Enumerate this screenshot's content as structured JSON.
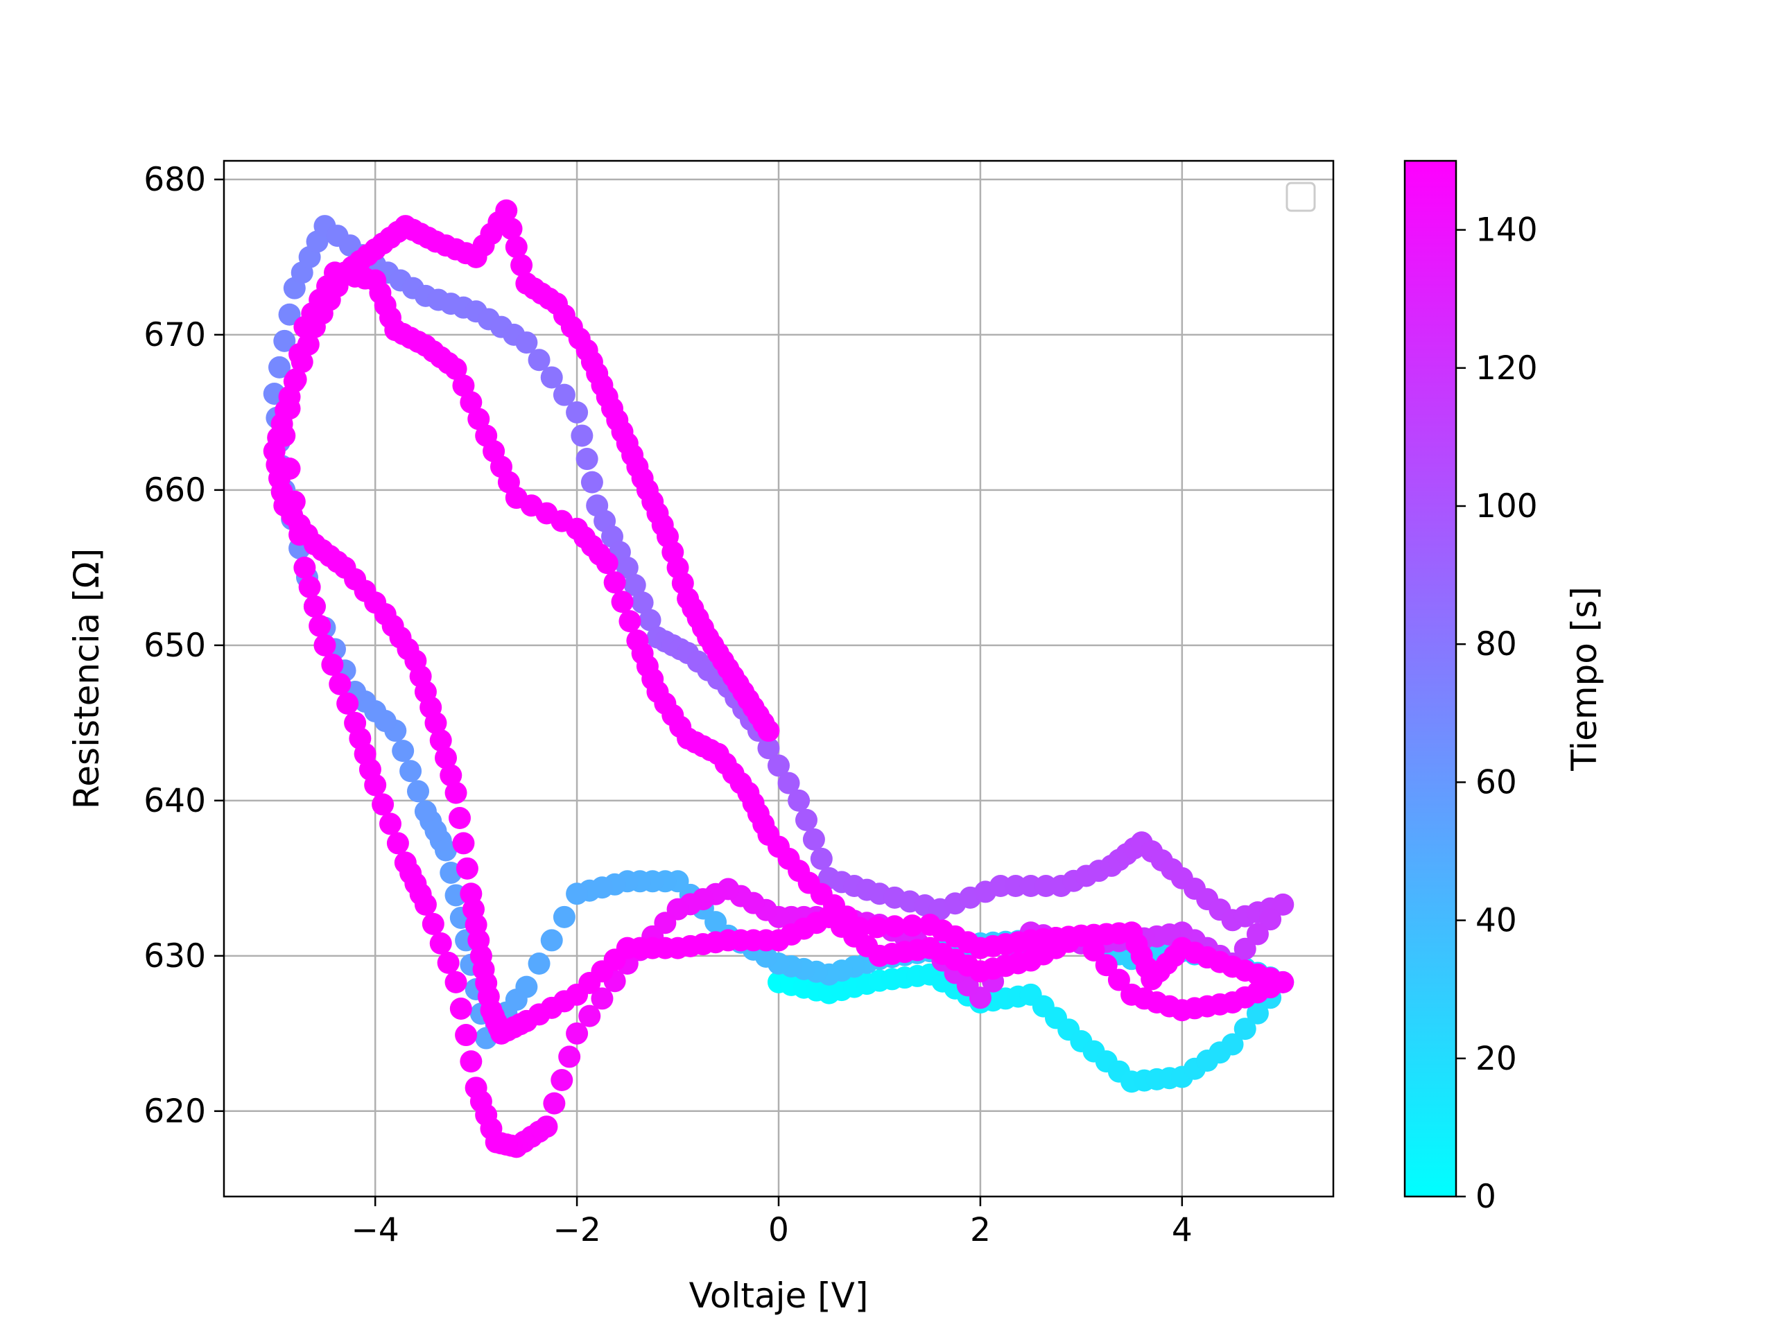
{
  "chart_data": {
    "type": "scatter",
    "xlabel": "Voltaje [V]",
    "ylabel": "Resistencia [Ω]",
    "xlim": [
      -5.5,
      5.5
    ],
    "ylim": [
      614.5,
      681.2
    ],
    "xticks": [
      -4,
      -2,
      0,
      2,
      4
    ],
    "yticks": [
      620,
      630,
      640,
      650,
      660,
      670,
      680
    ],
    "grid": true,
    "legend": "top-right, empty",
    "colormap": "cool",
    "colorbar": {
      "label": "Tiempo [s]",
      "range": [
        0,
        150
      ],
      "ticks": [
        0,
        20,
        40,
        60,
        80,
        100,
        120,
        140
      ]
    },
    "marker_color_low": "#00ffff",
    "marker_color_high": "#ff00ff",
    "path": [
      [
        0,
        0,
        628.3
      ],
      [
        3,
        0.5,
        627.6
      ],
      [
        5,
        1.0,
        628.4
      ],
      [
        7,
        1.5,
        628.8
      ],
      [
        9,
        2.0,
        627.0
      ],
      [
        11,
        2.5,
        627.5
      ],
      [
        13,
        3.0,
        624.5
      ],
      [
        15,
        3.5,
        621.9
      ],
      [
        17,
        4.0,
        622.2
      ],
      [
        19,
        4.5,
        624.3
      ],
      [
        21,
        5.0,
        628.3
      ],
      [
        23,
        4.5,
        629.5
      ],
      [
        25,
        4.0,
        630.3
      ],
      [
        27,
        3.5,
        629.8
      ],
      [
        29,
        3.0,
        631.0
      ],
      [
        31,
        2.5,
        631.0
      ],
      [
        33,
        2.0,
        630.8
      ],
      [
        35,
        1.5,
        630.3
      ],
      [
        37,
        1.0,
        629.8
      ],
      [
        39,
        0.5,
        628.8
      ],
      [
        41,
        0.0,
        629.5
      ],
      [
        43,
        -0.5,
        631.3
      ],
      [
        45,
        -1.0,
        634.8
      ],
      [
        47,
        -1.5,
        634.8
      ],
      [
        49,
        -2.0,
        634.0
      ],
      [
        51,
        -2.5,
        628.0
      ],
      [
        53,
        -2.9,
        624.7
      ],
      [
        55,
        -3.1,
        631.0
      ],
      [
        57,
        -3.3,
        636.8
      ],
      [
        59,
        -3.5,
        639.3
      ],
      [
        61,
        -3.8,
        644.5
      ],
      [
        63,
        -4.2,
        647.0
      ],
      [
        65,
        -4.6,
        652.5
      ],
      [
        67,
        -4.9,
        660.0
      ],
      [
        69,
        -5.0,
        666.2
      ],
      [
        71,
        -4.8,
        673.0
      ],
      [
        73,
        -4.5,
        677.0
      ],
      [
        75,
        -4.0,
        674.5
      ],
      [
        77,
        -3.5,
        672.5
      ],
      [
        79,
        -3.0,
        671.5
      ],
      [
        81,
        -2.5,
        669.5
      ],
      [
        83,
        -2.0,
        665.0
      ],
      [
        85,
        -1.8,
        659.0
      ],
      [
        87,
        -1.5,
        655.0
      ],
      [
        89,
        -1.2,
        650.5
      ],
      [
        91,
        -0.9,
        649.5
      ],
      [
        93,
        -0.5,
        647.3
      ],
      [
        95,
        -0.2,
        644.5
      ],
      [
        97,
        0.2,
        640.0
      ],
      [
        99,
        0.5,
        635.0
      ],
      [
        101,
        1.0,
        634.0
      ],
      [
        103,
        1.6,
        633.0
      ],
      [
        105,
        2.2,
        634.5
      ],
      [
        107,
        2.8,
        634.5
      ],
      [
        109,
        3.3,
        635.8
      ],
      [
        111,
        3.6,
        637.3
      ],
      [
        113,
        4.0,
        635.0
      ],
      [
        115,
        4.5,
        632.3
      ],
      [
        117,
        5.0,
        633.3
      ],
      [
        119,
        4.5,
        629.5
      ],
      [
        121,
        4.0,
        631.5
      ],
      [
        123,
        3.5,
        631.0
      ],
      [
        125,
        3.0,
        630.8
      ],
      [
        127,
        2.5,
        631.5
      ],
      [
        129,
        2.0,
        627.3
      ],
      [
        131,
        1.5,
        630.5
      ],
      [
        133,
        1.0,
        632.0
      ],
      [
        135,
        0.5,
        632.5
      ],
      [
        137,
        0.0,
        632.5
      ],
      [
        139,
        -0.5,
        634.3
      ],
      [
        141,
        -1.0,
        633.0
      ],
      [
        143,
        -1.5,
        629.5
      ],
      [
        145,
        -2.0,
        625.0
      ],
      [
        147,
        -2.3,
        619.0
      ],
      [
        149,
        -2.6,
        617.7
      ],
      [
        151,
        -2.8,
        618.0
      ],
      [
        153,
        -3.0,
        621.5
      ],
      [
        155,
        -3.2,
        628.3
      ],
      [
        157,
        -3.5,
        633.3
      ],
      [
        159,
        -3.7,
        636.0
      ],
      [
        161,
        -4.0,
        641.0
      ],
      [
        163,
        -4.2,
        645.0
      ],
      [
        165,
        -4.5,
        650.0
      ],
      [
        167,
        -4.7,
        655.0
      ],
      [
        169,
        -4.9,
        663.5
      ],
      [
        171,
        -4.7,
        670.5
      ],
      [
        173,
        -4.4,
        674.0
      ],
      [
        175,
        -4.0,
        673.5
      ],
      [
        177,
        -3.8,
        670.3
      ],
      [
        179,
        -3.5,
        669.3
      ],
      [
        181,
        -3.2,
        667.8
      ],
      [
        183,
        -2.9,
        663.5
      ],
      [
        185,
        -2.6,
        659.5
      ],
      [
        187,
        -2.0,
        657.5
      ],
      [
        189,
        -1.7,
        655.3
      ],
      [
        191,
        -1.4,
        650.3
      ],
      [
        193,
        -1.2,
        647.0
      ],
      [
        195,
        -0.9,
        644.0
      ],
      [
        197,
        -0.6,
        643.0
      ],
      [
        199,
        -0.3,
        640.5
      ],
      [
        201,
        -0.1,
        637.8
      ],
      [
        203,
        0.3,
        634.7
      ],
      [
        205,
        0.8,
        631.8
      ],
      [
        207,
        1.5,
        632.0
      ],
      [
        209,
        2.0,
        630.5
      ],
      [
        211,
        2.5,
        631.0
      ],
      [
        213,
        3.0,
        631.3
      ],
      [
        215,
        3.5,
        631.5
      ],
      [
        217,
        3.7,
        628.5
      ],
      [
        219,
        4.0,
        630.5
      ],
      [
        221,
        4.5,
        629.3
      ],
      [
        223,
        5.0,
        628.3
      ],
      [
        225,
        4.5,
        627.0
      ],
      [
        227,
        4.0,
        626.5
      ],
      [
        229,
        3.5,
        627.5
      ],
      [
        231,
        3.0,
        631.3
      ],
      [
        233,
        2.5,
        629.7
      ],
      [
        235,
        2.0,
        629.0
      ],
      [
        237,
        1.5,
        630.5
      ],
      [
        239,
        1.0,
        630.0
      ],
      [
        241,
        0.5,
        632.5
      ],
      [
        243,
        0.0,
        631.0
      ],
      [
        245,
        -0.5,
        631.0
      ],
      [
        247,
        -1.0,
        630.5
      ],
      [
        249,
        -1.5,
        630.5
      ],
      [
        251,
        -2.0,
        627.5
      ],
      [
        253,
        -2.5,
        625.8
      ],
      [
        255,
        -2.75,
        625.0
      ],
      [
        257,
        -2.85,
        626.5
      ],
      [
        259,
        -2.95,
        630.0
      ],
      [
        261,
        -3.05,
        634.0
      ],
      [
        263,
        -3.2,
        640.5
      ],
      [
        265,
        -3.4,
        645.0
      ],
      [
        267,
        -3.6,
        649.0
      ],
      [
        269,
        -3.9,
        652.0
      ],
      [
        271,
        -4.3,
        655.0
      ],
      [
        273,
        -4.6,
        656.5
      ],
      [
        275,
        -4.9,
        659.0
      ],
      [
        277,
        -5.0,
        662.5
      ],
      [
        279,
        -4.85,
        666.0
      ],
      [
        281,
        -4.6,
        670.5
      ],
      [
        283,
        -4.3,
        674.0
      ],
      [
        285,
        -4.0,
        675.5
      ],
      [
        287,
        -3.7,
        677.0
      ],
      [
        289,
        -3.4,
        676.0
      ],
      [
        291,
        -3.0,
        675.0
      ],
      [
        293,
        -2.7,
        678.0
      ],
      [
        295,
        -2.5,
        673.3
      ],
      [
        297,
        -2.2,
        672.0
      ],
      [
        299,
        -1.9,
        669.0
      ],
      [
        301,
        -1.7,
        666.0
      ],
      [
        303,
        -1.5,
        663.0
      ],
      [
        305,
        -1.3,
        660.0
      ],
      [
        307,
        -1.1,
        657.0
      ],
      [
        309,
        -0.9,
        653.0
      ],
      [
        311,
        -0.7,
        650.5
      ],
      [
        313,
        -0.5,
        648.5
      ],
      [
        315,
        -0.3,
        646.5
      ],
      [
        317,
        -0.1,
        644.5
      ]
    ]
  }
}
